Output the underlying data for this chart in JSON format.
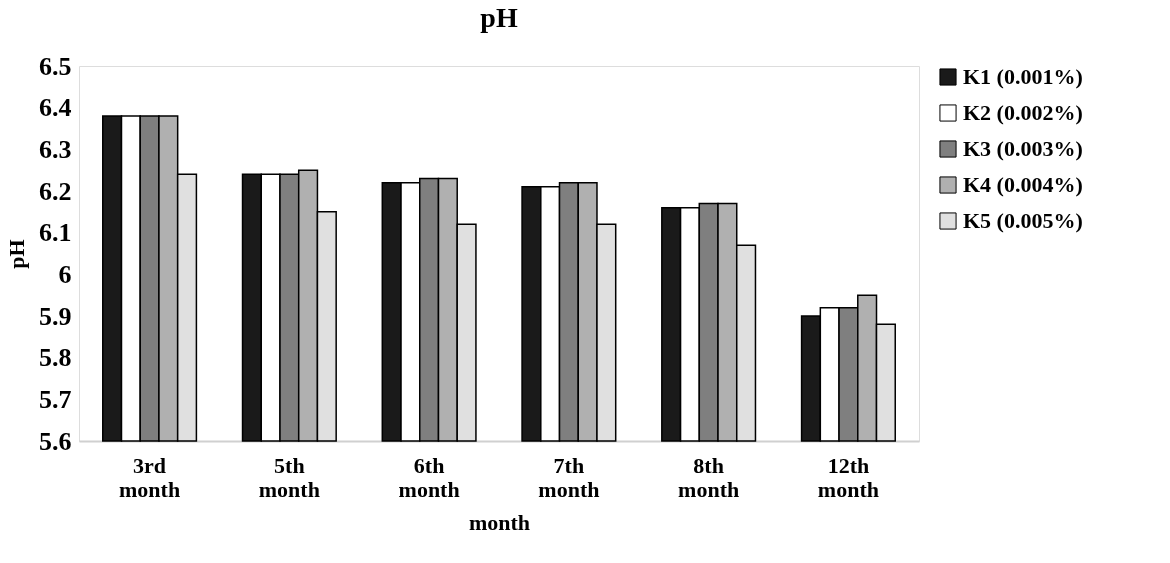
{
  "chart_data": {
    "type": "bar",
    "title": "pH",
    "xlabel": "month",
    "ylabel": "pH",
    "categories": [
      "3rd month",
      "5th month",
      "6th month",
      "7th month",
      "8th month",
      "12th month"
    ],
    "series": [
      {
        "name": "K1 (0.001%)",
        "color": "#1a1a1a",
        "values": [
          6.38,
          6.24,
          6.22,
          6.21,
          6.16,
          5.9
        ]
      },
      {
        "name": "K2 (0.002%)",
        "color": "#ffffff",
        "values": [
          6.38,
          6.24,
          6.22,
          6.21,
          6.16,
          5.92
        ]
      },
      {
        "name": "K3 (0.003%)",
        "color": "#7f7f7f",
        "values": [
          6.38,
          6.24,
          6.23,
          6.22,
          6.17,
          5.92
        ]
      },
      {
        "name": "K4 (0.004%)",
        "color": "#b0b0b0",
        "values": [
          6.38,
          6.25,
          6.23,
          6.22,
          6.17,
          5.95
        ]
      },
      {
        "name": "K5 (0.005%)",
        "color": "#e0e0e0",
        "values": [
          6.24,
          6.15,
          6.12,
          6.12,
          6.07,
          5.88
        ]
      }
    ],
    "ylim": [
      5.6,
      6.5
    ],
    "yticks": [
      5.6,
      5.7,
      5.8,
      5.9,
      6,
      6.1,
      6.2,
      6.3,
      6.4,
      6.5
    ],
    "grid": false,
    "legend": "right"
  }
}
